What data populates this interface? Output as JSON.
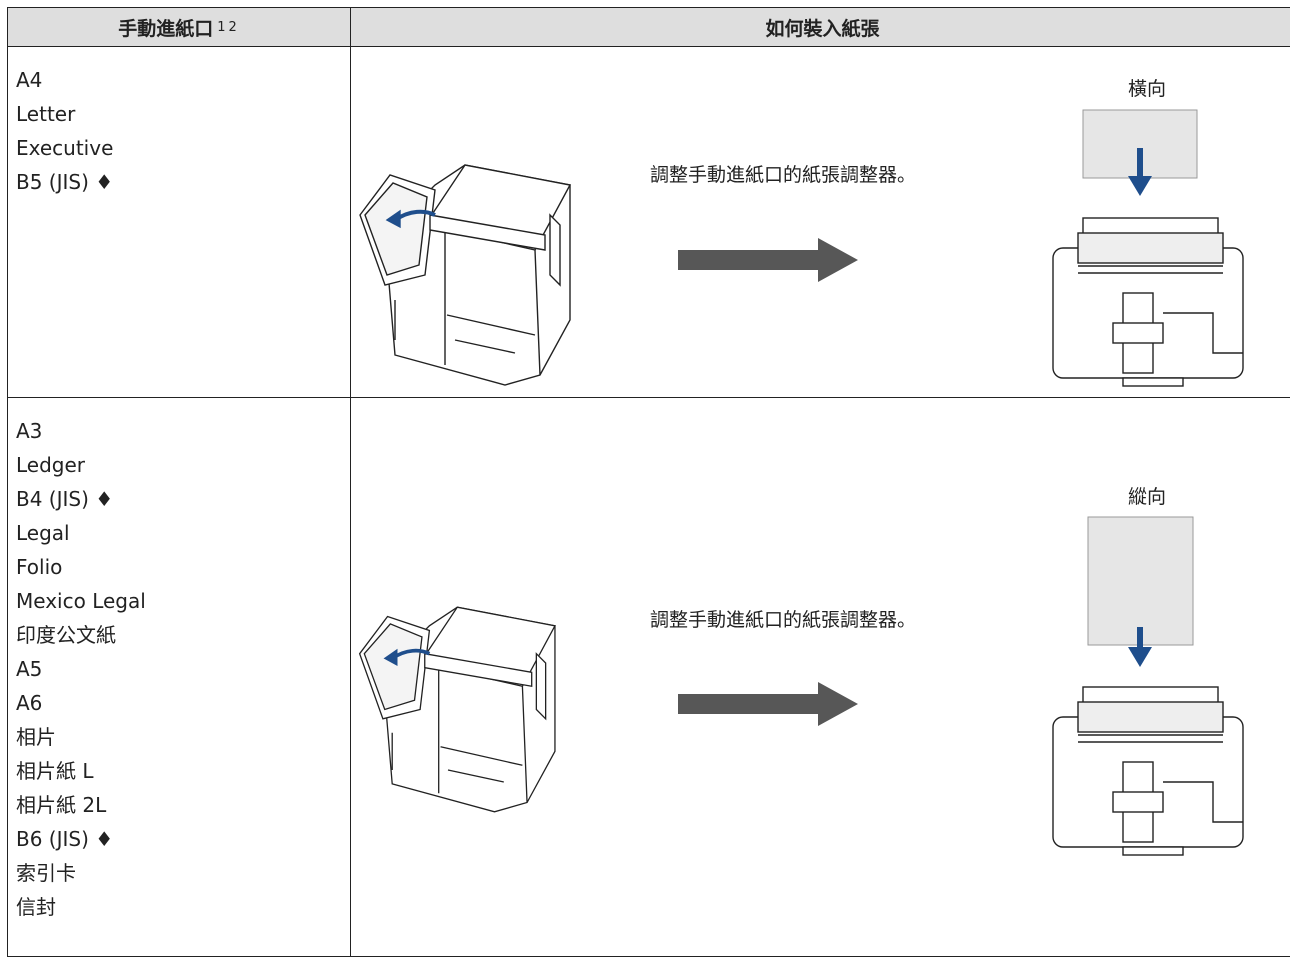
{
  "header": {
    "title": "手動進紙口",
    "footnotes": [
      "1",
      "2"
    ],
    "column2": "如何裝入紙張"
  },
  "rows": [
    {
      "sizes": [
        "A4",
        "Letter",
        "Executive",
        "B5 (JIS) ♦"
      ],
      "instruction": "調整手動進紙口的紙張調整器。",
      "orientation": "橫向"
    },
    {
      "sizes": [
        "A3",
        "Ledger",
        "B4 (JIS) ♦",
        "Legal",
        "Folio",
        "Mexico Legal",
        "印度公文紙",
        "A5",
        "A6",
        "相片",
        "相片紙 L",
        "相片紙 2L",
        "B6 (JIS) ♦",
        "索引卡",
        "信封"
      ],
      "instruction": "調整手動進紙口的紙張調整器。",
      "orientation": "縱向"
    }
  ]
}
